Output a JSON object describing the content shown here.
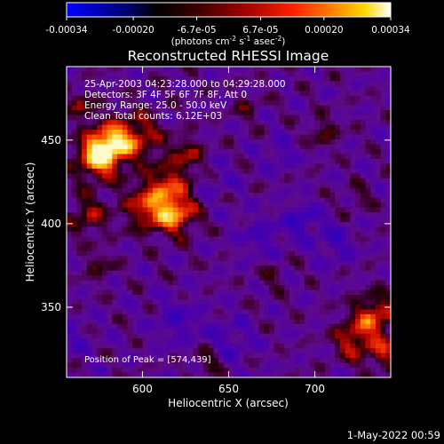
{
  "colorbar": {
    "tick_labels": [
      "-0.00034",
      "-0.00020",
      "-6.7e-05",
      "6.7e-05",
      "0.00020",
      "0.00034"
    ],
    "ticks": [
      -0.00034,
      -0.0002,
      -6.7e-05,
      6.7e-05,
      0.0002,
      0.00034
    ],
    "range": [
      -0.00034,
      0.00034
    ],
    "units_text": "(photons cm",
    "units_exp1": "-2",
    "units_mid": " s",
    "units_exp2": "-1",
    "units_mid2": " asec",
    "units_exp3": "-2",
    "units_end": ")",
    "colors": {
      "low": "#0000ff",
      "mid": "#000000",
      "high": "#ffffff"
    }
  },
  "image": {
    "title": "Reconstructed RHESSI Image",
    "info_lines": [
      "25-Apr-2003 04:23:28.000 to 04:29:28.000",
      "Detectors: 3F 4F 5F 6F 7F 8F, Att 0",
      "Energy Range: 25.0 - 50.0 keV",
      "Clean    Total counts: 6.12E+03"
    ],
    "peak_text": "Position of Peak = [574,439]",
    "xlabel": "Heliocentric X (arcsec)",
    "ylabel": "Heliocentric Y (arcsec)",
    "xticks": [
      "600",
      "650",
      "700"
    ],
    "yticks": [
      "350",
      "400",
      "450"
    ]
  },
  "chart_data": {
    "type": "heatmap",
    "title": "Reconstructed RHESSI Image",
    "xlabel": "Heliocentric X (arcsec)",
    "ylabel": "Heliocentric Y (arcsec)",
    "xlim": [
      556,
      744
    ],
    "ylim": [
      308,
      494
    ],
    "x_ticks": [
      600,
      650,
      700
    ],
    "y_ticks": [
      350,
      400,
      450
    ],
    "value_range": [
      -0.00034,
      0.00034
    ],
    "peak_position": [
      574,
      439
    ],
    "sources": [
      {
        "x": 574,
        "y": 439,
        "amplitude": 0.00034,
        "sigma": 9
      },
      {
        "x": 580,
        "y": 448,
        "amplitude": 0.0003,
        "sigma": 8
      },
      {
        "x": 596,
        "y": 452,
        "amplitude": 0.00024,
        "sigma": 10
      },
      {
        "x": 604,
        "y": 410,
        "amplitude": 0.00026,
        "sigma": 10
      },
      {
        "x": 620,
        "y": 405,
        "amplitude": 0.00028,
        "sigma": 8
      },
      {
        "x": 616,
        "y": 424,
        "amplitude": 0.0002,
        "sigma": 9
      },
      {
        "x": 626,
        "y": 442,
        "amplitude": 0.00016,
        "sigma": 7
      },
      {
        "x": 568,
        "y": 405,
        "amplitude": 0.00018,
        "sigma": 8
      },
      {
        "x": 565,
        "y": 470,
        "amplitude": 0.00016,
        "sigma": 6
      },
      {
        "x": 575,
        "y": 375,
        "amplitude": 0.00012,
        "sigma": 6
      },
      {
        "x": 660,
        "y": 470,
        "amplitude": 0.0001,
        "sigma": 6
      },
      {
        "x": 705,
        "y": 455,
        "amplitude": 0.00012,
        "sigma": 7
      },
      {
        "x": 725,
        "y": 415,
        "amplitude": 8e-05,
        "sigma": 6
      },
      {
        "x": 735,
        "y": 345,
        "amplitude": 0.00026,
        "sigma": 9
      },
      {
        "x": 722,
        "y": 330,
        "amplitude": 0.00022,
        "sigma": 8
      },
      {
        "x": 740,
        "y": 322,
        "amplitude": 0.00018,
        "sigma": 7
      },
      {
        "x": 638,
        "y": 318,
        "amplitude": 0.00014,
        "sigma": 6
      },
      {
        "x": 675,
        "y": 368,
        "amplitude": 8e-05,
        "sigma": 6
      },
      {
        "x": 668,
        "y": 392,
        "amplitude": -0.0001,
        "sigma": 9
      },
      {
        "x": 692,
        "y": 402,
        "amplitude": -0.00016,
        "sigma": 7
      },
      {
        "x": 620,
        "y": 342,
        "amplitude": -0.00012,
        "sigma": 9
      },
      {
        "x": 650,
        "y": 330,
        "amplitude": -0.0001,
        "sigma": 10
      },
      {
        "x": 712,
        "y": 388,
        "amplitude": -0.00012,
        "sigma": 8
      },
      {
        "x": 680,
        "y": 442,
        "amplitude": -0.0001,
        "sigma": 7
      },
      {
        "x": 645,
        "y": 425,
        "amplitude": -6e-05,
        "sigma": 8
      },
      {
        "x": 560,
        "y": 330,
        "amplitude": -8e-05,
        "sigma": 8
      }
    ]
  },
  "footer": {
    "date": "1-May-2022 00:59"
  }
}
